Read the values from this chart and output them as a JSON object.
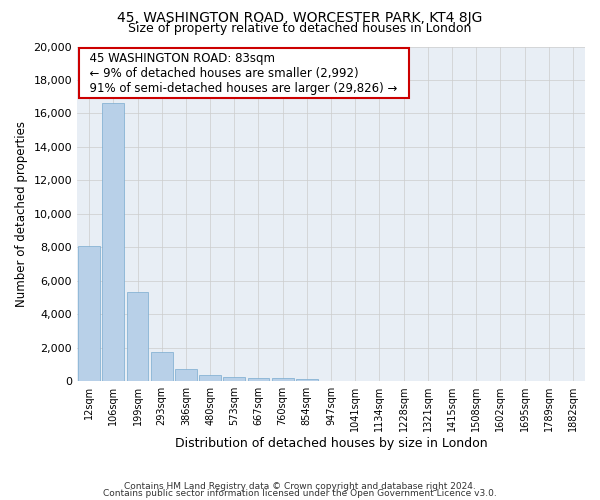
{
  "title_line1": "45, WASHINGTON ROAD, WORCESTER PARK, KT4 8JG",
  "title_line2": "Size of property relative to detached houses in London",
  "xlabel": "Distribution of detached houses by size in London",
  "ylabel": "Number of detached properties",
  "annotation_title": "45 WASHINGTON ROAD: 83sqm",
  "annotation_line2": "← 9% of detached houses are smaller (2,992)",
  "annotation_line3": "91% of semi-detached houses are larger (29,826) →",
  "footer_line1": "Contains HM Land Registry data © Crown copyright and database right 2024.",
  "footer_line2": "Contains public sector information licensed under the Open Government Licence v3.0.",
  "bar_labels": [
    "12sqm",
    "106sqm",
    "199sqm",
    "293sqm",
    "386sqm",
    "480sqm",
    "573sqm",
    "667sqm",
    "760sqm",
    "854sqm",
    "947sqm",
    "1041sqm",
    "1134sqm",
    "1228sqm",
    "1321sqm",
    "1415sqm",
    "1508sqm",
    "1602sqm",
    "1695sqm",
    "1789sqm",
    "1882sqm"
  ],
  "bar_values": [
    8100,
    16600,
    5300,
    1750,
    750,
    350,
    220,
    210,
    170,
    130,
    0,
    0,
    0,
    0,
    0,
    0,
    0,
    0,
    0,
    0,
    0
  ],
  "bar_color": "#b8d0e8",
  "bar_edge_color": "#7aabcf",
  "annotation_box_color": "#cc0000",
  "ylim": [
    0,
    20000
  ],
  "yticks": [
    0,
    2000,
    4000,
    6000,
    8000,
    10000,
    12000,
    14000,
    16000,
    18000,
    20000
  ],
  "grid_color": "#cccccc",
  "plot_bg_color": "#e8eef5"
}
